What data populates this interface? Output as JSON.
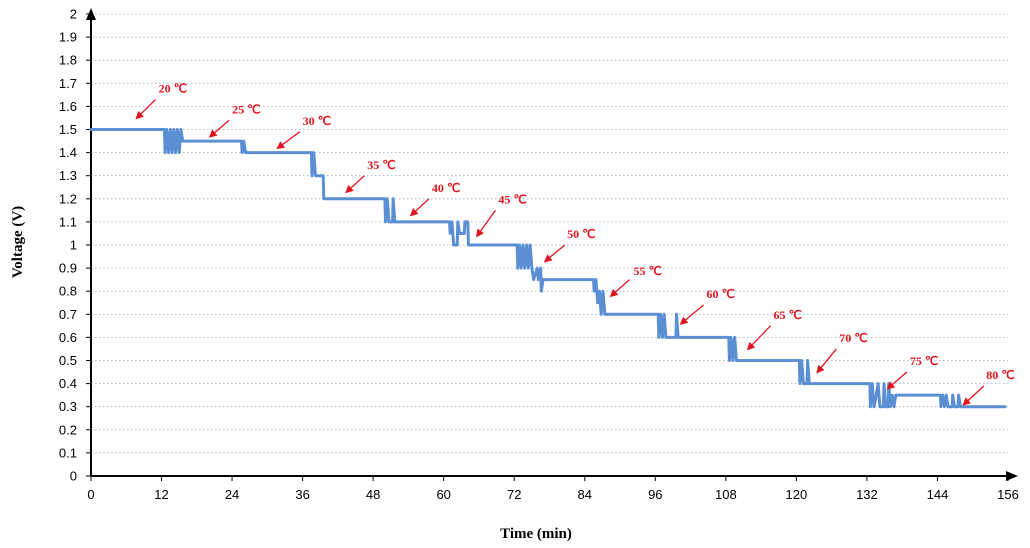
{
  "chart_data": {
    "type": "line",
    "title": "",
    "xlabel": "Time (min)",
    "ylabel": "Voltage (V)",
    "xlim": [
      0,
      156
    ],
    "ylim": [
      0,
      2
    ],
    "x_ticks": [
      "0",
      "12",
      "24",
      "36",
      "48",
      "60",
      "72",
      "84",
      "96",
      "108",
      "120",
      "132",
      "144",
      "156"
    ],
    "y_ticks": [
      "0",
      "0.1",
      "0.2",
      "0.3",
      "0.4",
      "0.5",
      "0.6",
      "0.7",
      "0.8",
      "0.9",
      "1",
      "1.1",
      "1.2",
      "1.3",
      "1.4",
      "1.5",
      "1.6",
      "1.7",
      "1.8",
      "1.9",
      "2"
    ],
    "grid": "horizontal dotted",
    "series_color": "#5b8fd4",
    "annotation_color": "#e0141e",
    "series": [
      {
        "points": [
          [
            0,
            1.5
          ],
          [
            12.5,
            1.5
          ],
          [
            12.6,
            1.4
          ],
          [
            12.9,
            1.5
          ],
          [
            13.2,
            1.4
          ],
          [
            13.5,
            1.5
          ],
          [
            13.8,
            1.4
          ],
          [
            14.1,
            1.5
          ],
          [
            14.4,
            1.4
          ],
          [
            14.7,
            1.5
          ],
          [
            15,
            1.4
          ],
          [
            15.3,
            1.5
          ],
          [
            15.6,
            1.45
          ],
          [
            25.6,
            1.45
          ],
          [
            25.7,
            1.4
          ],
          [
            26,
            1.45
          ],
          [
            26.3,
            1.4
          ],
          [
            37.5,
            1.4
          ],
          [
            37.6,
            1.3
          ],
          [
            37.9,
            1.4
          ],
          [
            38.2,
            1.3
          ],
          [
            39.5,
            1.3
          ],
          [
            39.6,
            1.2
          ],
          [
            50,
            1.2
          ],
          [
            50.1,
            1.1
          ],
          [
            50.4,
            1.2
          ],
          [
            50.7,
            1.1
          ],
          [
            51.3,
            1.1
          ],
          [
            51.4,
            1.2
          ],
          [
            51.7,
            1.1
          ],
          [
            61,
            1.1
          ],
          [
            61.1,
            1.05
          ],
          [
            61.4,
            1.1
          ],
          [
            61.7,
            1
          ],
          [
            62.3,
            1
          ],
          [
            62.4,
            1.1
          ],
          [
            62.7,
            1.05
          ],
          [
            63.5,
            1.05
          ],
          [
            63.6,
            1.1
          ],
          [
            64.1,
            1.1
          ],
          [
            64.2,
            1
          ],
          [
            72.5,
            1
          ],
          [
            72.6,
            0.9
          ],
          [
            72.9,
            1
          ],
          [
            73.2,
            0.9
          ],
          [
            73.5,
            1
          ],
          [
            73.8,
            0.9
          ],
          [
            74.1,
            1
          ],
          [
            74.4,
            0.9
          ],
          [
            74.7,
            1
          ],
          [
            75,
            0.9
          ],
          [
            75.3,
            0.85
          ],
          [
            75.9,
            0.9
          ],
          [
            76.1,
            0.85
          ],
          [
            76.5,
            0.9
          ],
          [
            76.6,
            0.8
          ],
          [
            76.9,
            0.85
          ],
          [
            85.5,
            0.85
          ],
          [
            85.6,
            0.8
          ],
          [
            85.9,
            0.85
          ],
          [
            86.2,
            0.75
          ],
          [
            86.5,
            0.8
          ],
          [
            86.8,
            0.7
          ],
          [
            87.1,
            0.8
          ],
          [
            87.4,
            0.7
          ],
          [
            96.5,
            0.7
          ],
          [
            96.6,
            0.6
          ],
          [
            96.9,
            0.7
          ],
          [
            97.2,
            0.6
          ],
          [
            97.5,
            0.7
          ],
          [
            97.8,
            0.6
          ],
          [
            99.5,
            0.6
          ],
          [
            99.6,
            0.7
          ],
          [
            99.9,
            0.6
          ],
          [
            108.5,
            0.6
          ],
          [
            108.6,
            0.5
          ],
          [
            108.9,
            0.6
          ],
          [
            109.2,
            0.5
          ],
          [
            109.5,
            0.6
          ],
          [
            109.8,
            0.5
          ],
          [
            120.5,
            0.5
          ],
          [
            120.6,
            0.4
          ],
          [
            120.9,
            0.5
          ],
          [
            121.2,
            0.4
          ],
          [
            121.8,
            0.4
          ],
          [
            121.9,
            0.5
          ],
          [
            122.2,
            0.4
          ],
          [
            132.5,
            0.4
          ],
          [
            132.6,
            0.3
          ],
          [
            132.9,
            0.4
          ],
          [
            133.2,
            0.3
          ],
          [
            133.6,
            0.35
          ],
          [
            133.9,
            0.4
          ],
          [
            134.2,
            0.3
          ],
          [
            134.8,
            0.3
          ],
          [
            134.9,
            0.4
          ],
          [
            135.2,
            0.3
          ],
          [
            135.6,
            0.3
          ],
          [
            135.7,
            0.4
          ],
          [
            136,
            0.3
          ],
          [
            136.3,
            0.35
          ],
          [
            136.6,
            0.3
          ],
          [
            136.9,
            0.35
          ],
          [
            137.2,
            0.35
          ],
          [
            144.5,
            0.35
          ],
          [
            144.6,
            0.3
          ],
          [
            144.9,
            0.35
          ],
          [
            145.2,
            0.3
          ],
          [
            145.5,
            0.35
          ],
          [
            145.8,
            0.3
          ],
          [
            146.5,
            0.3
          ],
          [
            146.6,
            0.35
          ],
          [
            146.9,
            0.3
          ],
          [
            147.5,
            0.3
          ],
          [
            147.6,
            0.35
          ],
          [
            147.9,
            0.3
          ],
          [
            155.5,
            0.3
          ]
        ]
      }
    ],
    "annotations": [
      {
        "text": "20 ℃",
        "label_x": 11.5,
        "label_y": 1.66,
        "arrow_from": [
          11.0,
          1.63
        ],
        "arrow_to": [
          7.8,
          1.55
        ]
      },
      {
        "text": "25 ℃",
        "label_x": 24.0,
        "label_y": 1.57,
        "arrow_from": [
          23.5,
          1.54
        ],
        "arrow_to": [
          20.3,
          1.47
        ]
      },
      {
        "text": "30 ℃",
        "label_x": 36.0,
        "label_y": 1.52,
        "arrow_from": [
          35.5,
          1.49
        ],
        "arrow_to": [
          31.8,
          1.42
        ]
      },
      {
        "text": "35 ℃",
        "label_x": 47.0,
        "label_y": 1.33,
        "arrow_from": [
          46.5,
          1.3
        ],
        "arrow_to": [
          43.5,
          1.23
        ]
      },
      {
        "text": "40 ℃",
        "label_x": 58.0,
        "label_y": 1.23,
        "arrow_from": [
          57.5,
          1.2
        ],
        "arrow_to": [
          54.5,
          1.13
        ]
      },
      {
        "text": "45 ℃",
        "label_x": 69.3,
        "label_y": 1.18,
        "arrow_from": [
          68.8,
          1.15
        ],
        "arrow_to": [
          65.7,
          1.04
        ]
      },
      {
        "text": "50 ℃",
        "label_x": 81.0,
        "label_y": 1.03,
        "arrow_from": [
          80.6,
          1.0
        ],
        "arrow_to": [
          77.3,
          0.93
        ]
      },
      {
        "text": "55 ℃",
        "label_x": 92.3,
        "label_y": 0.87,
        "arrow_from": [
          91.6,
          0.85
        ],
        "arrow_to": [
          88.5,
          0.78
        ]
      },
      {
        "text": "60 ℃",
        "label_x": 104.7,
        "label_y": 0.77,
        "arrow_from": [
          104.2,
          0.74
        ],
        "arrow_to": [
          100.4,
          0.66
        ]
      },
      {
        "text": "65 ℃",
        "label_x": 116.1,
        "label_y": 0.68,
        "arrow_from": [
          115.6,
          0.65
        ],
        "arrow_to": [
          111.8,
          0.55
        ]
      },
      {
        "text": "70 ℃",
        "label_x": 127.3,
        "label_y": 0.58,
        "arrow_from": [
          126.8,
          0.55
        ],
        "arrow_to": [
          123.6,
          0.45
        ]
      },
      {
        "text": "75 ℃",
        "label_x": 139.3,
        "label_y": 0.48,
        "arrow_from": [
          138.8,
          0.45
        ],
        "arrow_to": [
          135.6,
          0.38
        ]
      },
      {
        "text": "80 ℃",
        "label_x": 152.3,
        "label_y": 0.42,
        "arrow_from": [
          151.9,
          0.39
        ],
        "arrow_to": [
          148.5,
          0.31
        ]
      }
    ]
  }
}
